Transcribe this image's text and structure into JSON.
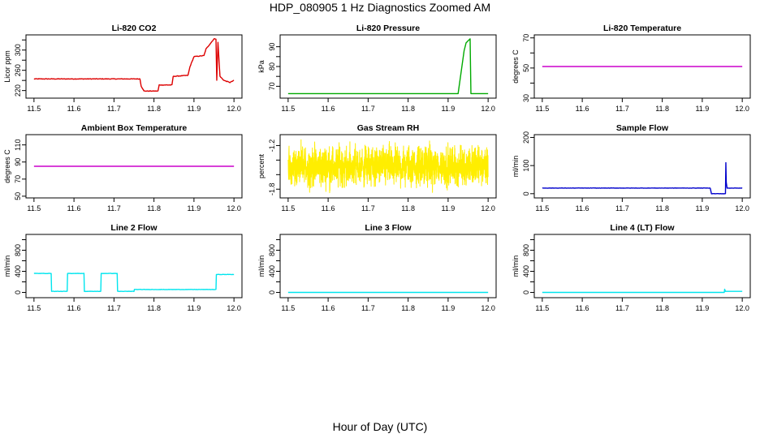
{
  "figure": {
    "title": "HDP_080905  1 Hz Diagnostics Zoomed AM",
    "xlabel": "Hour of Day (UTC)"
  },
  "chart_data": [
    {
      "type": "line",
      "title": "Li-820 CO2",
      "xlabel": "",
      "ylabel": "Licor ppm",
      "xlim": [
        11.48,
        12.02
      ],
      "ylim": [
        205,
        330
      ],
      "xticks": [
        11.5,
        11.6,
        11.7,
        11.8,
        11.9,
        12.0
      ],
      "xtick_labels": [
        "11.5",
        "11.6",
        "11.7",
        "11.8",
        "11.9",
        "12.0"
      ],
      "yticks": [
        220,
        240,
        260,
        280,
        300,
        320
      ],
      "ytick_labels": [
        "220",
        "",
        "260",
        "",
        "300",
        ""
      ],
      "color": "#dd0000",
      "series": [
        {
          "name": "CO2",
          "noise": 0.6,
          "x": [
            11.5,
            11.765,
            11.768,
            11.775,
            11.81,
            11.813,
            11.845,
            11.848,
            11.885,
            11.89,
            11.9,
            11.925,
            11.93,
            11.95,
            11.955,
            11.957,
            11.96,
            11.965,
            11.975,
            11.99,
            12.0
          ],
          "y": [
            243,
            243,
            229,
            219,
            219,
            231,
            231,
            248,
            250,
            267,
            287,
            289,
            302,
            322,
            322,
            240,
            315,
            248,
            240,
            236,
            240
          ]
        }
      ]
    },
    {
      "type": "line",
      "title": "Li-820 Pressure",
      "xlabel": "",
      "ylabel": "kPa",
      "xlim": [
        11.48,
        12.02
      ],
      "ylim": [
        64,
        96
      ],
      "xticks": [
        11.5,
        11.6,
        11.7,
        11.8,
        11.9,
        12.0
      ],
      "xtick_labels": [
        "11.5",
        "11.6",
        "11.7",
        "11.8",
        "11.9",
        "12.0"
      ],
      "yticks": [
        70,
        75,
        80,
        85,
        90
      ],
      "ytick_labels": [
        "70",
        "",
        "80",
        "",
        "90"
      ],
      "color": "#00aa00",
      "series": [
        {
          "name": "Pressure",
          "noise": 0,
          "x": [
            11.5,
            11.925,
            11.94,
            11.945,
            11.955,
            11.957,
            11.96,
            12.0
          ],
          "y": [
            66.3,
            66.3,
            88,
            92,
            94,
            66.3,
            66.3,
            66.3
          ]
        }
      ]
    },
    {
      "type": "line",
      "title": "Li-820 Temperature",
      "xlabel": "",
      "ylabel": "degrees C",
      "xlim": [
        11.48,
        12.02
      ],
      "ylim": [
        30,
        72
      ],
      "xticks": [
        11.5,
        11.6,
        11.7,
        11.8,
        11.9,
        12.0
      ],
      "xtick_labels": [
        "11.5",
        "11.6",
        "11.7",
        "11.8",
        "11.9",
        "12.0"
      ],
      "yticks": [
        30,
        40,
        50,
        60,
        70
      ],
      "ytick_labels": [
        "30",
        "",
        "50",
        "",
        "70"
      ],
      "color": "#cc00cc",
      "series": [
        {
          "name": "Temperature",
          "noise": 0,
          "x": [
            11.5,
            12.0
          ],
          "y": [
            51,
            51
          ]
        }
      ]
    },
    {
      "type": "line",
      "title": "Ambient Box Temperature",
      "xlabel": "",
      "ylabel": "degrees C",
      "xlim": [
        11.48,
        12.02
      ],
      "ylim": [
        48,
        122
      ],
      "xticks": [
        11.5,
        11.6,
        11.7,
        11.8,
        11.9,
        12.0
      ],
      "xtick_labels": [
        "11.5",
        "11.6",
        "11.7",
        "11.8",
        "11.9",
        "12.0"
      ],
      "yticks": [
        50,
        70,
        90,
        110
      ],
      "ytick_labels": [
        "50",
        "70",
        "90",
        "110"
      ],
      "color": "#cc00cc",
      "series": [
        {
          "name": "Box Temperature",
          "noise": 0,
          "x": [
            11.5,
            12.0
          ],
          "y": [
            85,
            85
          ]
        }
      ]
    },
    {
      "type": "line",
      "title": "Gas Stream RH",
      "xlabel": "",
      "ylabel": "percent",
      "xlim": [
        11.48,
        12.02
      ],
      "ylim": [
        -1.92,
        -1.05
      ],
      "xticks": [
        11.5,
        11.6,
        11.7,
        11.8,
        11.9,
        12.0
      ],
      "xtick_labels": [
        "11.5",
        "11.6",
        "11.7",
        "11.8",
        "11.9",
        "12.0"
      ],
      "yticks": [
        -1.8,
        -1.6,
        -1.4,
        -1.2
      ],
      "ytick_labels": [
        "-1.8",
        "",
        "",
        "-1.2"
      ],
      "color": "#ffee00",
      "series": [
        {
          "name": "RH",
          "noise": 0,
          "random_band": [
            -1.85,
            -1.12
          ],
          "samples": 1500,
          "x": [
            11.5,
            12.0
          ],
          "y": [
            -1.48,
            -1.48
          ]
        }
      ]
    },
    {
      "type": "line",
      "title": "Sample Flow",
      "xlabel": "",
      "ylabel": "ml/min",
      "xlim": [
        11.48,
        12.02
      ],
      "ylim": [
        -15,
        210
      ],
      "xticks": [
        11.5,
        11.6,
        11.7,
        11.8,
        11.9,
        12.0
      ],
      "xtick_labels": [
        "11.5",
        "11.6",
        "11.7",
        "11.8",
        "11.9",
        "12.0"
      ],
      "yticks": [
        0,
        100,
        200
      ],
      "ytick_labels": [
        "0",
        "100",
        "200"
      ],
      "color": "#0000cc",
      "series": [
        {
          "name": "Flow",
          "noise": 0.5,
          "x": [
            11.5,
            11.92,
            11.923,
            11.958,
            11.959,
            11.96,
            11.962,
            11.965,
            12.0
          ],
          "y": [
            20,
            20,
            0,
            0,
            110,
            40,
            20,
            20,
            20
          ]
        }
      ]
    },
    {
      "type": "line",
      "title": "Line 2 Flow",
      "xlabel": "",
      "ylabel": "ml/min",
      "xlim": [
        11.48,
        12.02
      ],
      "ylim": [
        -100,
        1100
      ],
      "xticks": [
        11.5,
        11.6,
        11.7,
        11.8,
        11.9,
        12.0
      ],
      "xtick_labels": [
        "11.5",
        "11.6",
        "11.7",
        "11.8",
        "11.9",
        "12.0"
      ],
      "yticks": [
        0,
        200,
        400,
        600,
        800,
        1000
      ],
      "ytick_labels": [
        "0",
        "",
        "400",
        "",
        "800",
        ""
      ],
      "color": "#00e5ee",
      "series": [
        {
          "name": "Line 2",
          "noise": 3,
          "x": [
            11.5,
            11.543,
            11.544,
            11.583,
            11.584,
            11.625,
            11.626,
            11.667,
            11.668,
            11.708,
            11.709,
            11.75,
            11.751,
            11.955,
            11.956,
            11.99,
            12.0
          ],
          "y": [
            360,
            360,
            20,
            20,
            360,
            360,
            20,
            20,
            360,
            360,
            20,
            20,
            55,
            55,
            340,
            340,
            340
          ]
        }
      ]
    },
    {
      "type": "line",
      "title": "Line 3 Flow",
      "xlabel": "",
      "ylabel": "ml/min",
      "xlim": [
        11.48,
        12.02
      ],
      "ylim": [
        -100,
        1100
      ],
      "xticks": [
        11.5,
        11.6,
        11.7,
        11.8,
        11.9,
        12.0
      ],
      "xtick_labels": [
        "11.5",
        "11.6",
        "11.7",
        "11.8",
        "11.9",
        "12.0"
      ],
      "yticks": [
        0,
        200,
        400,
        600,
        800,
        1000
      ],
      "ytick_labels": [
        "0",
        "",
        "400",
        "",
        "800",
        ""
      ],
      "color": "#00e5ee",
      "series": [
        {
          "name": "Line 3",
          "noise": 0,
          "x": [
            11.5,
            12.0
          ],
          "y": [
            0,
            0
          ]
        }
      ]
    },
    {
      "type": "line",
      "title": "Line 4 (LT) Flow",
      "xlabel": "",
      "ylabel": "ml/min",
      "xlim": [
        11.48,
        12.02
      ],
      "ylim": [
        -100,
        1100
      ],
      "xticks": [
        11.5,
        11.6,
        11.7,
        11.8,
        11.9,
        12.0
      ],
      "xtick_labels": [
        "11.5",
        "11.6",
        "11.7",
        "11.8",
        "11.9",
        "12.0"
      ],
      "yticks": [
        0,
        200,
        400,
        600,
        800,
        1000
      ],
      "ytick_labels": [
        "0",
        "",
        "400",
        "",
        "800",
        ""
      ],
      "color": "#00e5ee",
      "series": [
        {
          "name": "Line 4",
          "noise": 0,
          "x": [
            11.5,
            11.955,
            11.956,
            11.958,
            11.96,
            12.0
          ],
          "y": [
            0,
            0,
            60,
            20,
            20,
            20
          ]
        }
      ]
    }
  ]
}
